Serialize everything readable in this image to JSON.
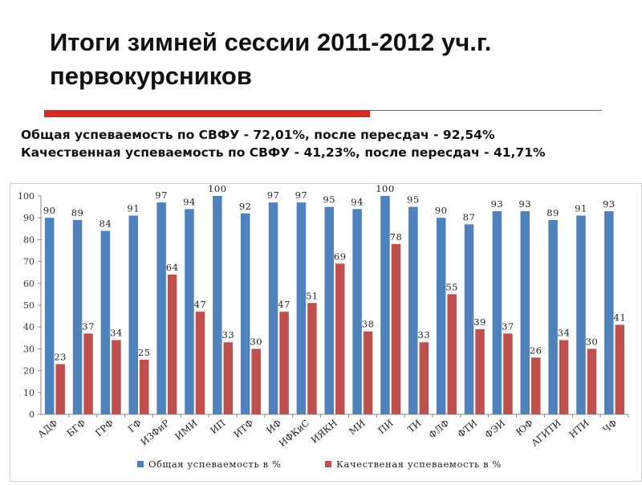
{
  "title": {
    "line1": "Итоги зимней сессии 2011-2012 уч.г.",
    "line2": "первокурсников"
  },
  "summary": {
    "line1": "Общая успеваемость по СВФУ - 72,01%, после пересдач - 92,54%",
    "line2": "Качественная успеваемость по СВФУ - 41,23%, после пересдач - 41,71%"
  },
  "colors": {
    "series1": "#4f81bd",
    "series2": "#c0504d",
    "accent": "#d9281f"
  },
  "chart_data": {
    "type": "bar",
    "title": "",
    "xlabel": "",
    "ylabel": "",
    "ylim": [
      0,
      100
    ],
    "yticks": [
      0,
      10,
      20,
      30,
      40,
      50,
      60,
      70,
      80,
      90,
      100
    ],
    "categories": [
      "АДФ",
      "БГФ",
      "ГРФ",
      "ГФ",
      "ИЗФиР",
      "ИМИ",
      "ИП",
      "ИТФ",
      "ИФ",
      "ИФКиС",
      "ИЯКН",
      "МИ",
      "ПИ",
      "ТИ",
      "ФЛФ",
      "ФТИ",
      "ФЭИ",
      "ЮФ",
      "АГИТИ",
      "НТИ",
      "ЧФ"
    ],
    "series": [
      {
        "name": "Общая успеваемость в %",
        "values": [
          90,
          89,
          84,
          91,
          97,
          94,
          100,
          92,
          97,
          97,
          95,
          94,
          100,
          95,
          90,
          87,
          93,
          93,
          89,
          91,
          93
        ]
      },
      {
        "name": "Качественая успеваемость в %",
        "values": [
          23,
          37,
          34,
          25,
          64,
          47,
          33,
          30,
          47,
          51,
          69,
          38,
          78,
          33,
          55,
          39,
          37,
          26,
          34,
          30,
          41
        ]
      }
    ],
    "legend": "bottom",
    "grid": false
  }
}
